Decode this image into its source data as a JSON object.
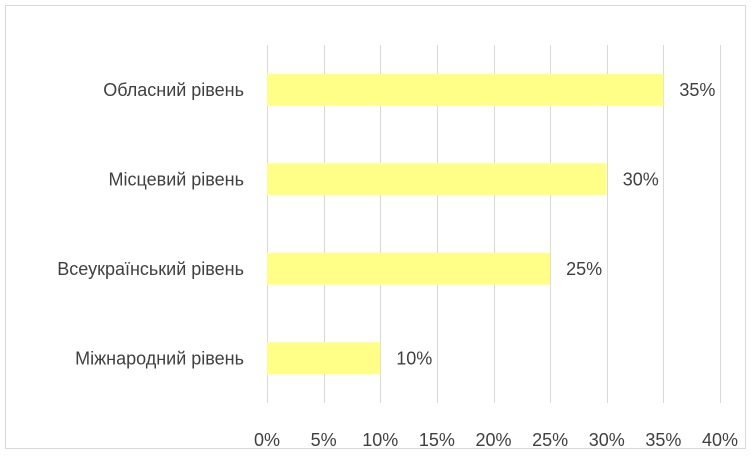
{
  "chart_data": {
    "type": "bar",
    "orientation": "horizontal",
    "categories": [
      "Обласний рівень",
      "Місцевий рівень",
      "Всеукраїнський рівень",
      "Міжнародний рівень"
    ],
    "values": [
      35,
      30,
      25,
      10
    ],
    "data_labels": [
      "35%",
      "30%",
      "25%",
      "10%"
    ],
    "x_ticks": [
      0,
      5,
      10,
      15,
      20,
      25,
      30,
      35,
      40
    ],
    "x_tick_labels": [
      "0%",
      "5%",
      "10%",
      "15%",
      "20%",
      "25%",
      "30%",
      "35%",
      "40%"
    ],
    "xlim": [
      0,
      40
    ],
    "unit": "%",
    "grid": "vertical",
    "legend": "none",
    "title": "",
    "xlabel": "",
    "ylabel": "",
    "colors": {
      "bar": "#ffff88",
      "gridline": "#d9d9d9",
      "border": "#d9d9d9",
      "text": "#404040"
    }
  }
}
